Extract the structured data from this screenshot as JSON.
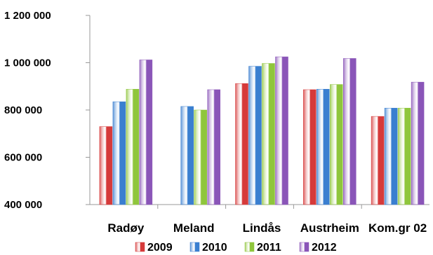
{
  "chart_data": {
    "type": "bar",
    "categories": [
      "Radøy",
      "Meland",
      "Lindås",
      "Austrheim",
      "Kom.gr 02"
    ],
    "series": [
      {
        "name": "2009",
        "values": [
          730000,
          null,
          912000,
          886000,
          773000
        ]
      },
      {
        "name": "2010",
        "values": [
          835000,
          815000,
          985000,
          888000,
          808000
        ]
      },
      {
        "name": "2011",
        "values": [
          888000,
          800000,
          997000,
          908000,
          808000
        ]
      },
      {
        "name": "2012",
        "values": [
          1012000,
          886000,
          1025000,
          1018000,
          918000
        ]
      }
    ],
    "y_ticks": [
      {
        "value": 400000,
        "label": "400 000"
      },
      {
        "value": 600000,
        "label": "600 000"
      },
      {
        "value": 800000,
        "label": "800 000"
      },
      {
        "value": 1000000,
        "label": "1 000 000"
      },
      {
        "value": 1200000,
        "label": "1 200 000"
      }
    ],
    "ylim": [
      400000,
      1200000
    ],
    "grid": false,
    "legend_position": "bottom",
    "colors": {
      "2009": "#d63a3a",
      "2010": "#3a7fd0",
      "2011": "#8fc63c",
      "2012": "#8a55b8"
    }
  }
}
